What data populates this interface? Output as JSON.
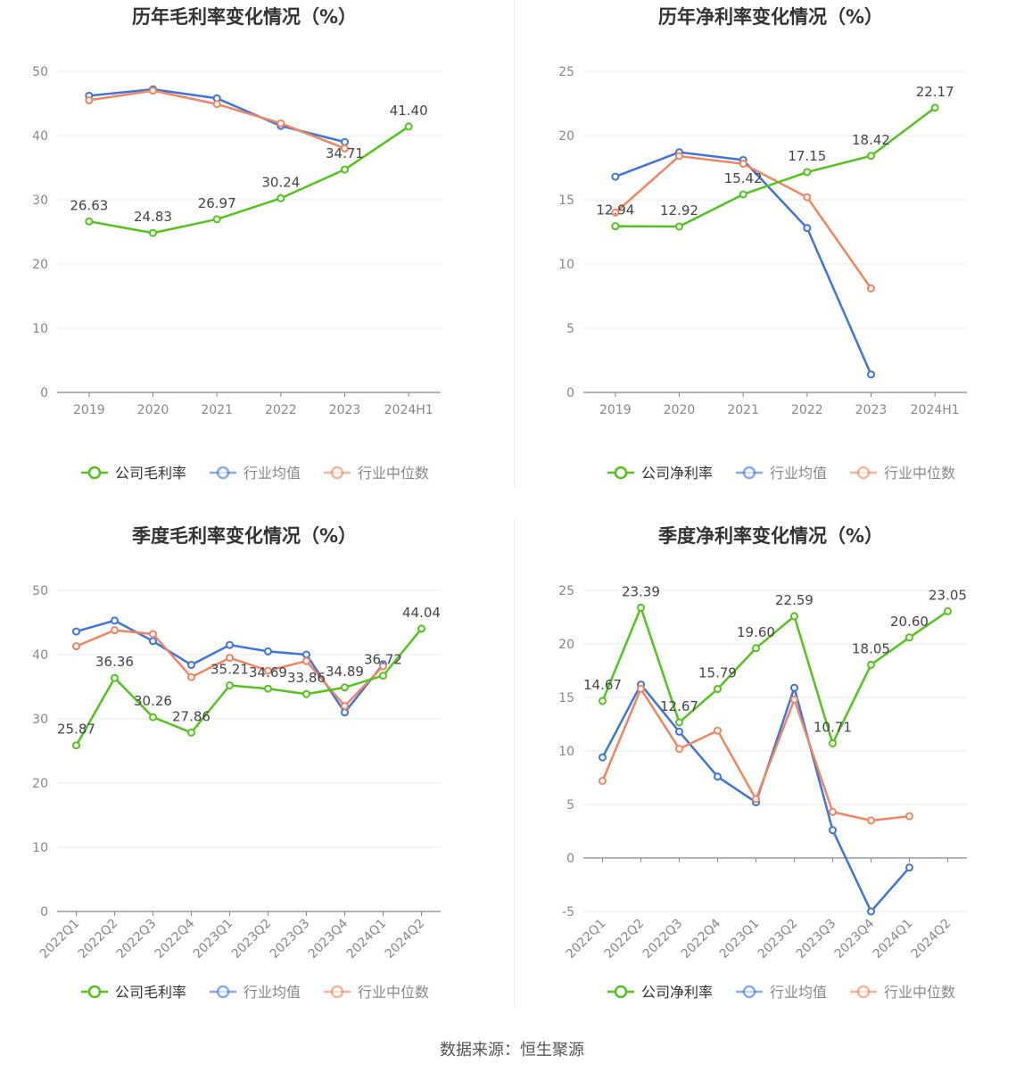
{
  "source": "数据来源：恒生聚源",
  "colors": {
    "company": "#52c41a",
    "avg": "#3e74e0",
    "median": "#f0855e"
  },
  "chart_data": [
    {
      "type": "line",
      "title": "历年毛利率变化情况（%）",
      "categories": [
        "2019",
        "2020",
        "2021",
        "2022",
        "2023",
        "2024H1"
      ],
      "ylim": [
        0,
        50
      ],
      "yticks": [
        0,
        10,
        20,
        30,
        40,
        50
      ],
      "series": [
        {
          "name": "公司毛利率",
          "color": "#52c41a",
          "labels": true,
          "values": [
            26.63,
            24.83,
            26.97,
            30.24,
            34.71,
            41.4
          ]
        },
        {
          "name": "行业均值",
          "color": "#3e74e0",
          "values": [
            46.2,
            47.2,
            45.8,
            41.5,
            39.0,
            null
          ]
        },
        {
          "name": "行业中位数",
          "color": "#f0855e",
          "values": [
            45.5,
            47.0,
            44.9,
            41.9,
            38.0,
            null
          ]
        }
      ]
    },
    {
      "type": "line",
      "title": "历年净利率变化情况（%）",
      "categories": [
        "2019",
        "2020",
        "2021",
        "2022",
        "2023",
        "2024H1"
      ],
      "ylim": [
        0,
        25
      ],
      "yticks": [
        0,
        5,
        10,
        15,
        20,
        25
      ],
      "series": [
        {
          "name": "公司净利率",
          "color": "#52c41a",
          "labels": true,
          "values": [
            12.94,
            12.92,
            15.42,
            17.15,
            18.42,
            22.17
          ]
        },
        {
          "name": "行业均值",
          "color": "#3e74e0",
          "values": [
            16.8,
            18.7,
            18.1,
            12.8,
            1.4,
            null
          ]
        },
        {
          "name": "行业中位数",
          "color": "#f0855e",
          "values": [
            14.0,
            18.4,
            17.8,
            15.2,
            8.1,
            null
          ]
        }
      ]
    },
    {
      "type": "line",
      "title": "季度毛利率变化情况（%）",
      "categories": [
        "2022Q1",
        "2022Q2",
        "2022Q3",
        "2022Q4",
        "2023Q1",
        "2023Q2",
        "2023Q3",
        "2023Q4",
        "2024Q1",
        "2024Q2"
      ],
      "ylim": [
        0,
        50
      ],
      "yticks": [
        0,
        10,
        20,
        30,
        40,
        50
      ],
      "rotated_xlabels": true,
      "series": [
        {
          "name": "公司毛利率",
          "color": "#52c41a",
          "labels": true,
          "values": [
            25.87,
            36.36,
            30.26,
            27.86,
            35.21,
            34.69,
            33.86,
            34.89,
            36.72,
            44.04
          ]
        },
        {
          "name": "行业均值",
          "color": "#3e74e0",
          "values": [
            43.6,
            45.3,
            42.1,
            38.4,
            41.5,
            40.5,
            40.0,
            31.0,
            38.5,
            null
          ]
        },
        {
          "name": "行业中位数",
          "color": "#f0855e",
          "values": [
            41.3,
            43.8,
            43.2,
            36.5,
            39.5,
            37.5,
            39.0,
            32.0,
            38.2,
            null
          ]
        }
      ]
    },
    {
      "type": "line",
      "title": "季度净利率变化情况（%）",
      "categories": [
        "2022Q1",
        "2022Q2",
        "2022Q3",
        "2022Q4",
        "2023Q1",
        "2023Q2",
        "2023Q3",
        "2023Q4",
        "2024Q1",
        "2024Q2"
      ],
      "ylim": [
        -5,
        25
      ],
      "yticks": [
        -5,
        0,
        5,
        10,
        15,
        20,
        25
      ],
      "rotated_xlabels": true,
      "series": [
        {
          "name": "公司净利率",
          "color": "#52c41a",
          "labels": true,
          "values": [
            14.67,
            23.39,
            12.67,
            15.79,
            19.6,
            22.59,
            10.71,
            18.05,
            20.6,
            23.05
          ]
        },
        {
          "name": "行业均值",
          "color": "#3e74e0",
          "values": [
            9.4,
            16.2,
            11.8,
            7.6,
            5.2,
            15.9,
            2.6,
            -5.0,
            -0.9,
            null
          ]
        },
        {
          "name": "行业中位数",
          "color": "#f0855e",
          "values": [
            7.2,
            15.8,
            10.2,
            11.9,
            5.5,
            14.8,
            4.3,
            3.5,
            3.9,
            null
          ]
        }
      ]
    }
  ]
}
